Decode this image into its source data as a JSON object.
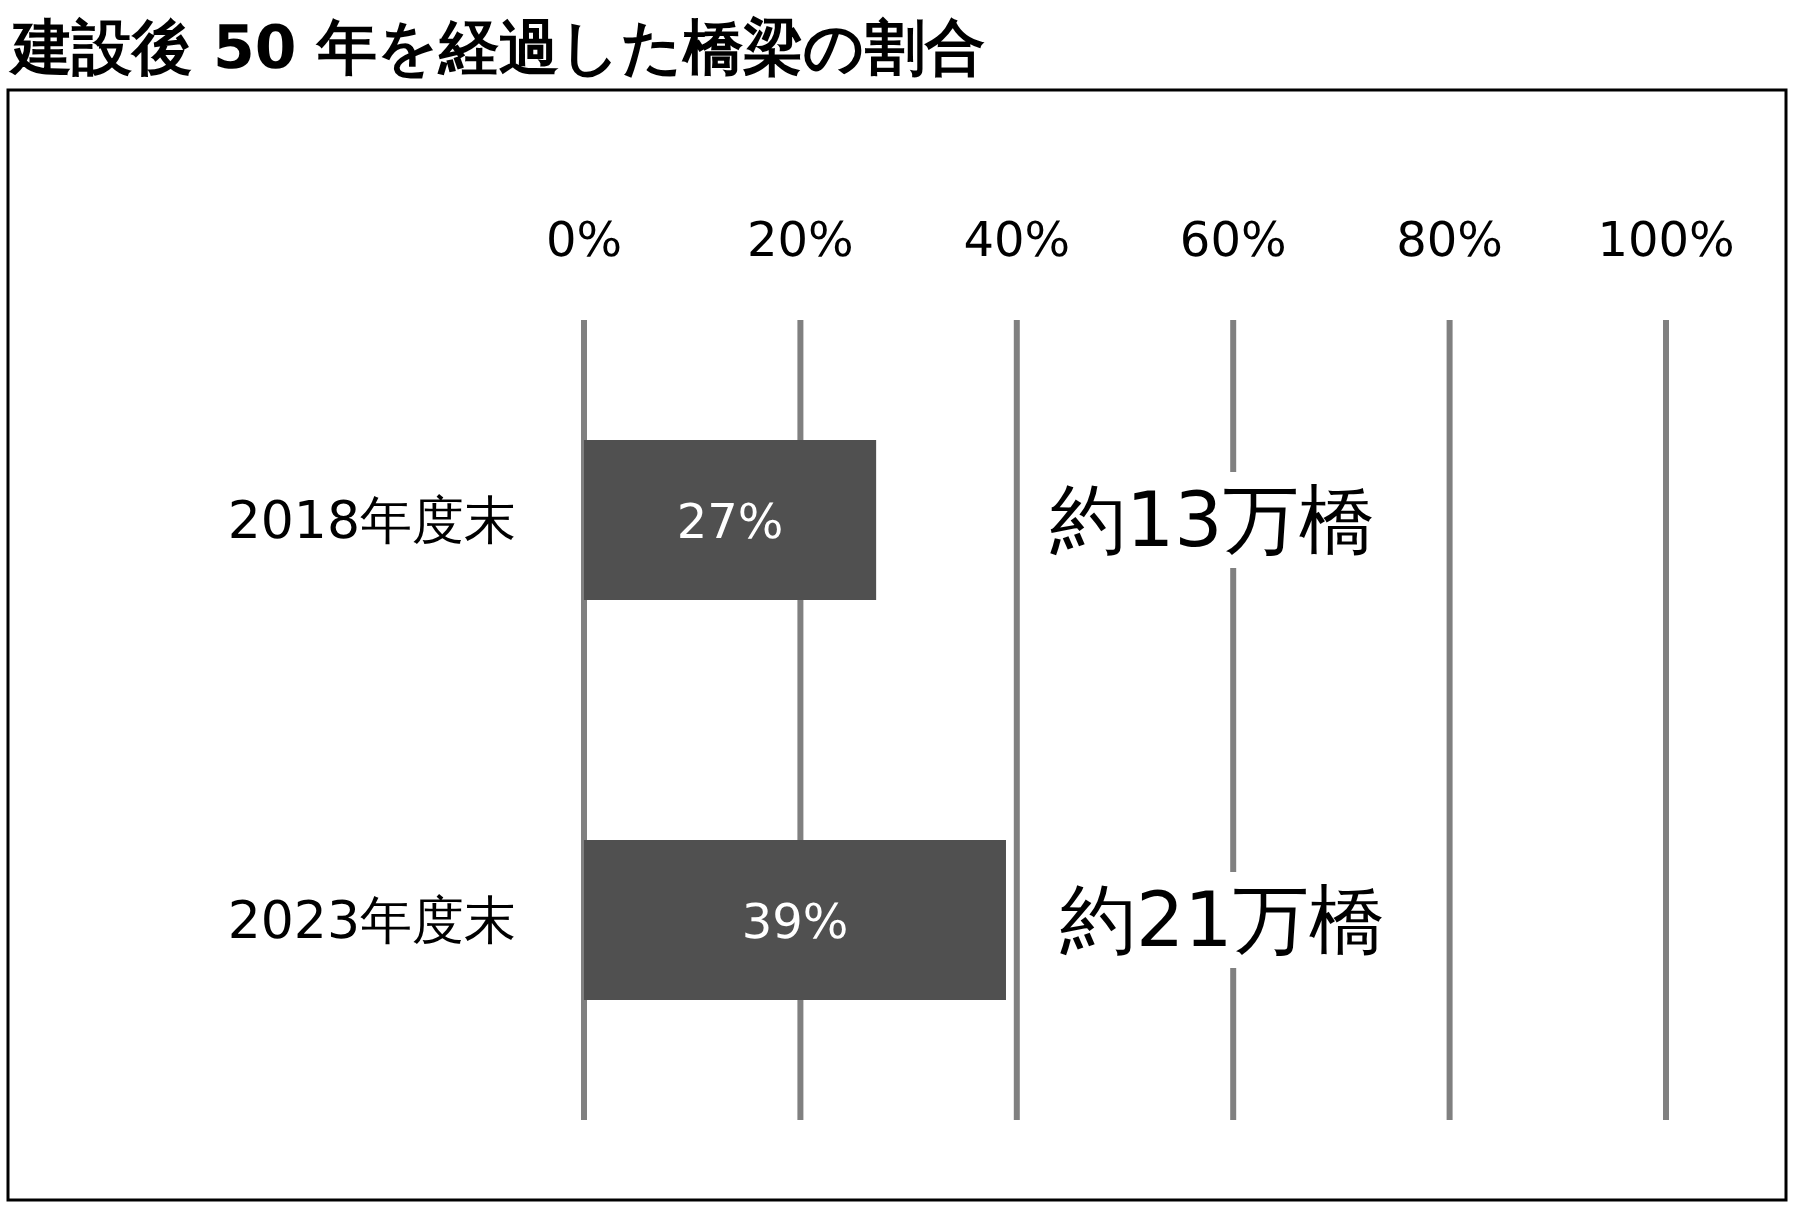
{
  "chart_data": {
    "type": "bar",
    "orientation": "horizontal",
    "title": "建設後 50 年を経過した橋梁の割合",
    "categories": [
      "2018年度末",
      "2023年度末"
    ],
    "values": [
      27,
      39
    ],
    "color": "#505050",
    "value_labels": [
      "27%",
      "39%"
    ],
    "xlim": [
      0,
      100
    ],
    "xticks": [
      {
        "value": 0,
        "label": "0%"
      },
      {
        "value": 20,
        "label": "20%"
      },
      {
        "value": 40,
        "label": "40%"
      },
      {
        "value": 60,
        "label": "60%"
      },
      {
        "value": 80,
        "label": "80%"
      },
      {
        "value": 100,
        "label": "100%"
      }
    ],
    "grid": "x",
    "annotations": [
      "約13万橋",
      "約21万橋"
    ]
  }
}
